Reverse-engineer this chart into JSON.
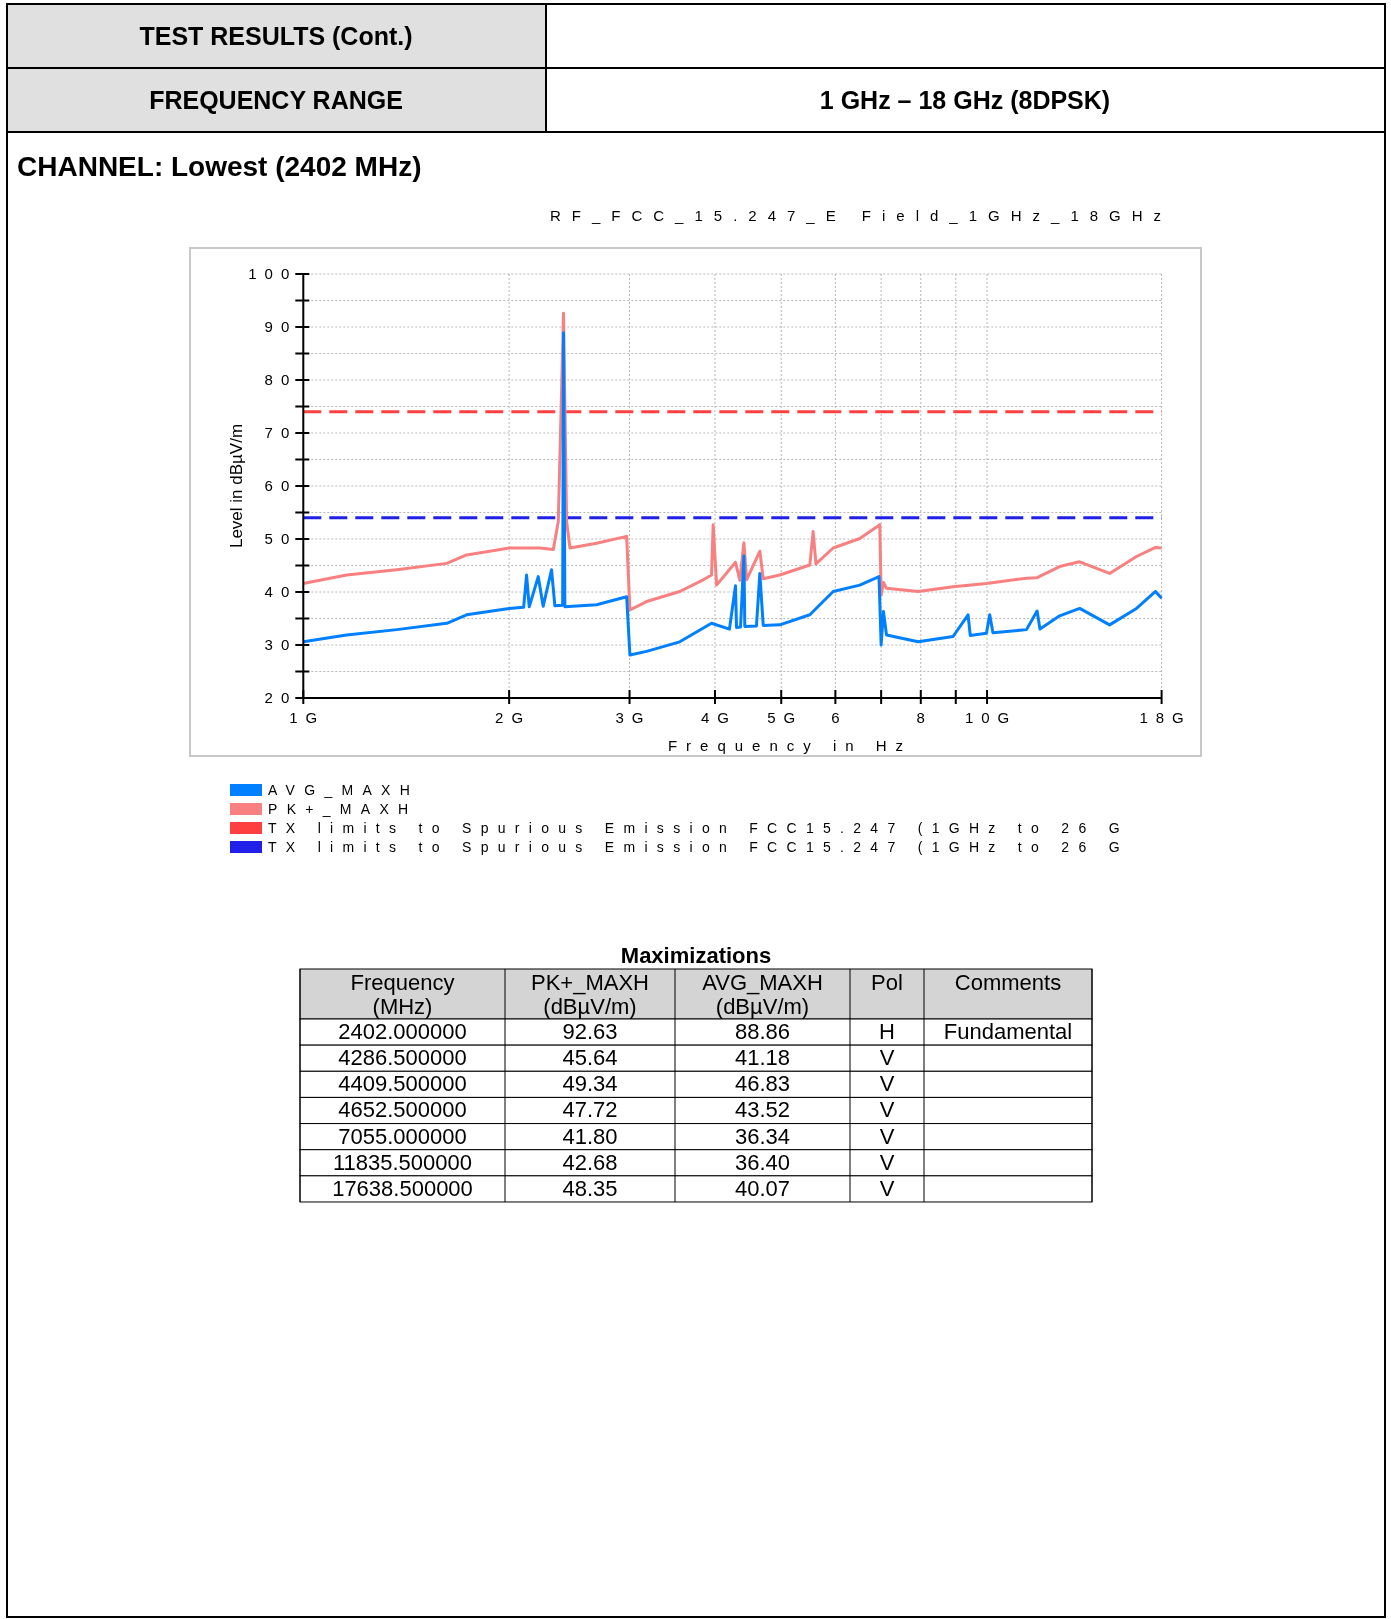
{
  "chart_data": [
    {
      "type": "other",
      "title": "TEST RESULTS (Cont.)",
      "annotations": [
        "FREQUENCY RANGE",
        "1 GHz – 18 GHz (8DPSK)",
        "CHANNEL: Lowest (2402 MHz)"
      ]
    },
    {
      "type": "line",
      "title": "RF_FCC_15.247_E Field_1GHz_18GHz",
      "xlabel": "Frequency in Hz",
      "ylabel": "Level in dBµV/m",
      "log": "x",
      "grid": true,
      "legend": "bottom",
      "xlim": [
        1,
        18
      ],
      "ylim": [
        20,
        100
      ],
      "xticks": [
        {
          "value": 1,
          "label": "1G"
        },
        {
          "value": 2,
          "label": "2G"
        },
        {
          "value": 3,
          "label": "3G"
        },
        {
          "value": 4,
          "label": "4G"
        },
        {
          "value": 5,
          "label": "5G"
        },
        6,
        {
          "value": 7,
          "label": null
        },
        8,
        {
          "value": 9,
          "label": null
        },
        {
          "value": 10,
          "label": "10G"
        },
        {
          "value": 18,
          "label": "18G"
        }
      ],
      "yticks": [
        20,
        {
          "value": 25,
          "label": null
        },
        30,
        {
          "value": 35,
          "label": null
        },
        40,
        {
          "value": 45,
          "label": null
        },
        50,
        {
          "value": 55,
          "label": null
        },
        60,
        {
          "value": 65,
          "label": null
        },
        70,
        {
          "value": 75,
          "label": null
        },
        80,
        {
          "value": 85,
          "label": null
        },
        90,
        {
          "value": 95,
          "label": null
        },
        100
      ],
      "series": [
        {
          "name": "AVG_MAXH",
          "color": "#0080ff",
          "x": [
            1,
            1.157,
            1.37,
            1.621,
            1.733,
            2,
            2.1,
            2.121,
            2.14,
            2.206,
            2.243,
            2.307,
            2.333,
            2.395,
            2.402,
            2.413,
            2.685,
            2.971,
            3.004,
            3.177,
            3.553,
            3.954,
            4.2,
            4.2865,
            4.301,
            4.36,
            4.4095,
            4.423,
            4.6,
            4.6525,
            4.706,
            4.977,
            5.506,
            5.956,
            6.515,
            6.95,
            7,
            7.055,
            7.127,
            7.93,
            8.918,
            9.38,
            9.45,
            9.98,
            10.09,
            10.2,
            11.42,
            11.8355,
            11.95,
            12.77,
            13.66,
            15.11,
            16.54,
            17.6385,
            18
          ],
          "values": [
            30.6,
            31.9,
            32.9,
            34.1,
            35.7,
            36.9,
            37.1,
            43.2,
            37.2,
            42.9,
            37.3,
            44.2,
            37.4,
            37.5,
            88.9,
            37.2,
            37.6,
            39.1,
            28.1,
            28.8,
            30.6,
            34.1,
            33.0,
            41.2,
            33.3,
            33.4,
            46.8,
            33.5,
            33.6,
            43.5,
            33.7,
            33.8,
            35.7,
            40.1,
            41.3,
            42.9,
            30.0,
            36.3,
            31.9,
            30.6,
            31.6,
            35.7,
            31.8,
            32.2,
            35.7,
            32.3,
            32.9,
            36.4,
            33.0,
            35.5,
            36.9,
            33.8,
            36.9,
            40.1,
            38.8
          ]
        },
        {
          "name": "PK+_MAXH",
          "color": "#f88080",
          "x": [
            1,
            1.157,
            1.37,
            1.621,
            1.733,
            1.854,
            2,
            2.218,
            2.321,
            2.36,
            2.402,
            2.427,
            2.455,
            2.685,
            2.971,
            3.004,
            3.177,
            3.553,
            3.845,
            3.954,
            3.976,
            4.022,
            4.2865,
            4.35,
            4.4095,
            4.45,
            4.6525,
            4.706,
            4.977,
            5.506,
            5.567,
            5.62,
            5.956,
            6.515,
            6.968,
            7,
            7.055,
            7.127,
            7.93,
            8.918,
            9.98,
            11.42,
            11.8355,
            12.77,
            13.66,
            15.11,
            16.54,
            17.6385,
            18
          ],
          "values": [
            41.6,
            43.2,
            44.2,
            45.4,
            47.0,
            47.6,
            48.3,
            48.3,
            48.0,
            53.3,
            92.6,
            53.3,
            48.3,
            49.2,
            50.5,
            36.6,
            38.2,
            40.1,
            42.3,
            43.2,
            52.7,
            41.3,
            45.6,
            42.2,
            49.3,
            42.3,
            47.7,
            42.5,
            43.2,
            45.1,
            51.4,
            45.3,
            48.3,
            50.1,
            52.7,
            39.4,
            41.8,
            40.7,
            40.1,
            41.0,
            41.6,
            42.6,
            42.7,
            44.8,
            45.7,
            43.5,
            46.7,
            48.4,
            48.3
          ]
        },
        {
          "name": "TX limits to Spurious Emission FCC15.247 (1GHz to 26 G",
          "color": "#ff4040",
          "line_style": "dashed",
          "x": [
            1,
            18
          ],
          "values": [
            74,
            74
          ]
        },
        {
          "name": "TX limits to Spurious Emission FCC15.247 (1GHz to 26 G",
          "color": "#2020e8",
          "line_style": "dashed",
          "x": [
            1,
            18
          ],
          "values": [
            54,
            54
          ]
        }
      ]
    },
    {
      "type": "other",
      "title": "Maximizations",
      "xlabel": "Frequency (MHz)",
      "data_labels": true,
      "categories": [
        "2402.000000",
        "4286.500000",
        "4409.500000",
        "4652.500000",
        "7055.000000",
        "11835.500000",
        "17638.500000"
      ],
      "series": [
        {
          "values": [
            92.63,
            45.64,
            49.34,
            47.72,
            41.8,
            42.68,
            48.35
          ],
          "value_labels": [
            "92.63",
            "45.64",
            "49.34",
            "47.72",
            "41.80",
            "42.68",
            "48.35"
          ]
        },
        {
          "values": [
            88.86,
            41.18,
            46.83,
            43.52,
            36.34,
            36.4,
            40.07
          ],
          "value_labels": [
            "88.86",
            "41.18",
            "46.83",
            "43.52",
            "36.34",
            "36.40",
            "40.07"
          ]
        }
      ],
      "annotations": [
        "PK+_MAXH (dBµV/m)",
        "AVG_MAXH (dBµV/m)",
        "Pol",
        "Comments",
        "H",
        "V",
        "V",
        "V",
        "V",
        "V",
        "V",
        "Fundamental"
      ]
    }
  ]
}
